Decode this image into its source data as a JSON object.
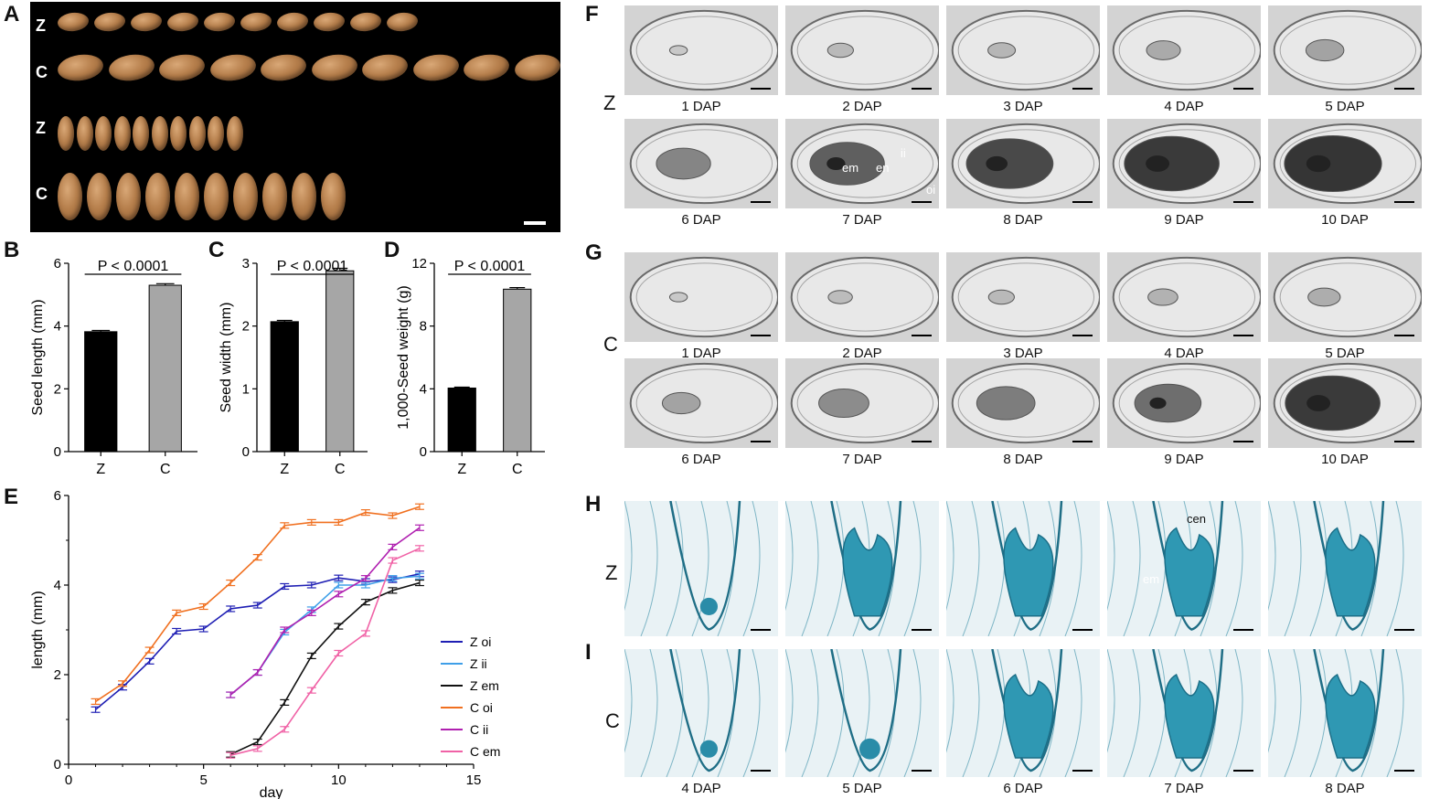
{
  "panel_labels": {
    "A": "A",
    "B": "B",
    "C": "C",
    "D": "D",
    "E": "E",
    "F": "F",
    "G": "G",
    "H": "H",
    "I": "I"
  },
  "panelA": {
    "rows": [
      "Z",
      "C",
      "Z",
      "C"
    ]
  },
  "dap_labels_FG": [
    "1 DAP",
    "2 DAP",
    "3 DAP",
    "4 DAP",
    "5 DAP",
    "6 DAP",
    "7 DAP",
    "8 DAP",
    "9 DAP",
    "10 DAP"
  ],
  "dap_labels_I": [
    "4 DAP",
    "5 DAP",
    "6 DAP",
    "7 DAP",
    "8 DAP"
  ],
  "row_labels": {
    "F": "Z",
    "G": "C",
    "H": "Z",
    "I": "C"
  },
  "annotations": {
    "em": "em",
    "en": "en",
    "ii": "ii",
    "oi": "oi",
    "cen": "cen",
    "em_h": "em"
  },
  "chart_data": [
    {
      "type": "bar",
      "panel": "B",
      "categories": [
        "Z",
        "C"
      ],
      "values": [
        3.82,
        5.3
      ],
      "errors": [
        0.04,
        0.05
      ],
      "colors": [
        "#000000",
        "#a6a6a6"
      ],
      "ylabel": "Seed length (mm)",
      "ylim": [
        0,
        6
      ],
      "yticks": [
        0,
        2,
        4,
        6
      ],
      "annotation": "P < 0.0001"
    },
    {
      "type": "bar",
      "panel": "C",
      "categories": [
        "Z",
        "C"
      ],
      "values": [
        2.07,
        2.88
      ],
      "errors": [
        0.02,
        0.04
      ],
      "colors": [
        "#000000",
        "#a6a6a6"
      ],
      "ylabel": "Seed width (mm)",
      "ylim": [
        0,
        3
      ],
      "yticks": [
        0,
        1,
        2,
        3
      ],
      "annotation": "P < 0.0001"
    },
    {
      "type": "bar",
      "panel": "D",
      "categories": [
        "Z",
        "C"
      ],
      "values": [
        4.05,
        10.35
      ],
      "errors": [
        0.06,
        0.1
      ],
      "colors": [
        "#000000",
        "#a6a6a6"
      ],
      "ylabel": "1,000-Seed weight (g)",
      "ylim": [
        0,
        12
      ],
      "yticks": [
        0,
        4,
        8,
        12
      ],
      "annotation": "P < 0.0001"
    },
    {
      "type": "line",
      "panel": "E",
      "xlabel": "day",
      "ylabel": "length (mm)",
      "xlim": [
        0,
        15
      ],
      "ylim": [
        0,
        6
      ],
      "xticks": [
        0,
        5,
        10,
        15
      ],
      "yticks": [
        0,
        2,
        4,
        6
      ],
      "legend_position": "right",
      "series": [
        {
          "name": "Z oi",
          "color": "#1f1fb4",
          "x": [
            1,
            2,
            3,
            4,
            5,
            6,
            7,
            8,
            9,
            10,
            11,
            12,
            13
          ],
          "y": [
            1.22,
            1.72,
            2.3,
            2.97,
            3.02,
            3.47,
            3.55,
            3.97,
            4.0,
            4.16,
            4.08,
            4.12,
            4.25
          ]
        },
        {
          "name": "Z ii",
          "color": "#3f9fe8",
          "x": [
            6,
            7,
            8,
            9,
            10,
            11,
            12,
            13
          ],
          "y": [
            1.55,
            2.05,
            2.95,
            3.45,
            4.0,
            4.0,
            4.15,
            4.2
          ]
        },
        {
          "name": "Z em",
          "color": "#111111",
          "x": [
            6,
            7,
            8,
            9,
            10,
            11,
            12,
            13
          ],
          "y": [
            0.22,
            0.5,
            1.38,
            2.42,
            3.08,
            3.62,
            3.88,
            4.05
          ]
        },
        {
          "name": "C oi",
          "color": "#f07020",
          "x": [
            1,
            2,
            3,
            4,
            5,
            6,
            7,
            8,
            9,
            10,
            11,
            12,
            13
          ],
          "y": [
            1.4,
            1.8,
            2.55,
            3.38,
            3.52,
            4.05,
            4.62,
            5.33,
            5.4,
            5.4,
            5.62,
            5.55,
            5.75
          ]
        },
        {
          "name": "C ii",
          "color": "#b020b0",
          "x": [
            6,
            7,
            8,
            9,
            10,
            11,
            12,
            13
          ],
          "y": [
            1.55,
            2.05,
            3.0,
            3.38,
            3.8,
            4.15,
            4.85,
            5.28
          ]
        },
        {
          "name": "C em",
          "color": "#f062a6",
          "x": [
            6,
            7,
            8,
            9,
            10,
            11,
            12,
            13
          ],
          "y": [
            0.2,
            0.35,
            0.78,
            1.65,
            2.48,
            2.92,
            4.55,
            4.82
          ]
        }
      ]
    }
  ]
}
